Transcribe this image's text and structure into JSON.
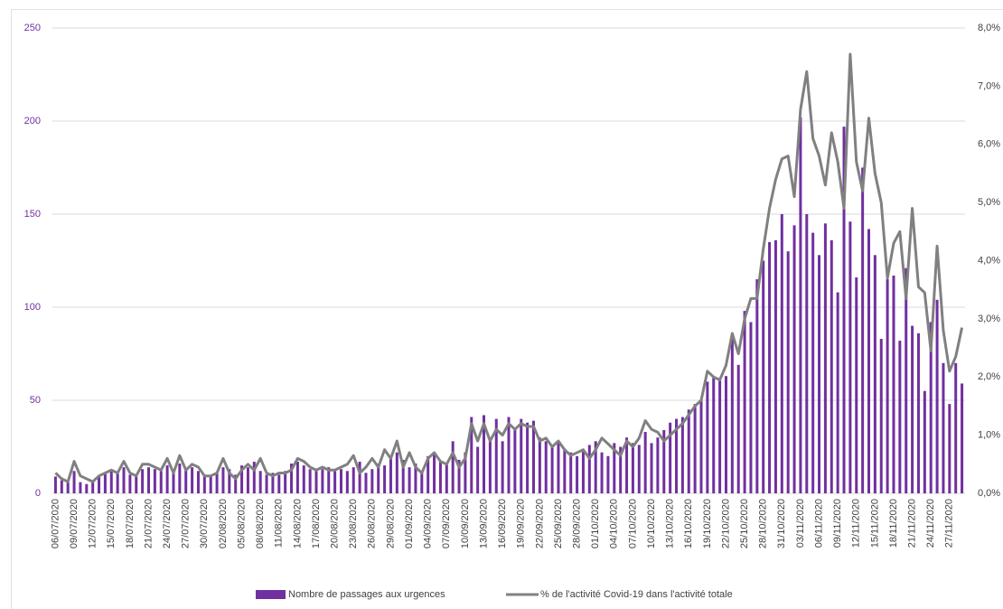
{
  "chart_data": {
    "type": "bar-line",
    "categories": [
      "06/07/2020",
      null,
      null,
      "09/07/2020",
      null,
      null,
      "12/07/2020",
      null,
      null,
      "15/07/2020",
      null,
      null,
      "18/07/2020",
      null,
      null,
      "21/07/2020",
      null,
      null,
      "24/07/2020",
      null,
      null,
      "27/07/2020",
      null,
      null,
      "30/07/2020",
      null,
      null,
      "02/08/2020",
      null,
      null,
      "05/08/2020",
      null,
      null,
      "08/08/2020",
      null,
      null,
      "11/08/2020",
      null,
      null,
      "14/08/2020",
      null,
      null,
      "17/08/2020",
      null,
      null,
      "20/08/2020",
      null,
      null,
      "23/08/2020",
      null,
      null,
      "26/08/2020",
      null,
      null,
      "29/08/2020",
      null,
      null,
      "01/09/2020",
      null,
      null,
      "04/09/2020",
      null,
      null,
      "07/09/2020",
      null,
      null,
      "10/09/2020",
      null,
      null,
      "13/09/2020",
      null,
      null,
      "16/09/2020",
      null,
      null,
      "19/09/2020",
      null,
      null,
      "22/09/2020",
      null,
      null,
      "25/09/2020",
      null,
      null,
      "28/09/2020",
      null,
      null,
      "01/10/2020",
      null,
      null,
      "04/10/2020",
      null,
      null,
      "07/10/2020",
      null,
      null,
      "10/10/2020",
      null,
      null,
      "13/10/2020",
      null,
      null,
      "16/10/2020",
      null,
      null,
      "19/10/2020",
      null,
      null,
      "22/10/2020",
      null,
      null,
      "25/10/2020",
      null,
      null,
      "28/10/2020",
      null,
      null,
      "31/10/2020",
      null,
      null,
      "03/11/2020",
      null,
      null,
      "06/11/2020",
      null,
      null,
      "09/11/2020",
      null,
      null,
      "12/11/2020",
      null,
      null,
      "15/11/2020",
      null,
      null,
      "18/11/2020",
      null,
      null,
      "21/11/2020",
      null,
      null,
      "24/11/2020",
      null,
      null,
      "27/11/2020",
      null,
      null
    ],
    "series": [
      {
        "name": "Nombre de passages aux urgences",
        "type": "bar",
        "color": "#7030a0",
        "values": [
          9,
          7,
          6,
          12,
          6,
          5,
          7,
          9,
          11,
          12,
          11,
          14,
          10,
          9,
          13,
          14,
          13,
          12,
          15,
          11,
          16,
          13,
          14,
          12,
          10,
          9,
          11,
          14,
          13,
          10,
          15,
          14,
          17,
          12,
          10,
          11,
          10,
          12,
          16,
          17,
          15,
          13,
          12,
          13,
          14,
          12,
          13,
          12,
          14,
          17,
          11,
          13,
          16,
          15,
          19,
          22,
          18,
          14,
          16,
          12,
          20,
          22,
          17,
          16,
          28,
          18,
          22,
          41,
          25,
          42,
          30,
          40,
          28,
          41,
          35,
          40,
          38,
          39,
          30,
          28,
          25,
          27,
          24,
          22,
          20,
          23,
          26,
          28,
          22,
          20,
          27,
          25,
          30,
          27,
          26,
          33,
          27,
          30,
          34,
          38,
          40,
          41,
          45,
          48,
          50,
          60,
          62,
          62,
          63,
          85,
          69,
          98,
          92,
          115,
          125,
          135,
          136,
          150,
          130,
          144,
          202,
          150,
          140,
          128,
          145,
          136,
          108,
          197,
          146,
          116,
          175,
          142,
          128,
          83,
          115,
          117,
          82,
          121,
          90,
          86,
          55,
          92,
          104,
          70,
          48,
          70,
          59
        ]
      },
      {
        "name": "% de l'activité Covid-19 dans l'activité totale",
        "type": "line",
        "axis": "y2",
        "color": "#808080",
        "values": [
          0.35,
          0.25,
          0.2,
          0.55,
          0.3,
          0.25,
          0.2,
          0.3,
          0.35,
          0.4,
          0.35,
          0.55,
          0.35,
          0.3,
          0.5,
          0.5,
          0.45,
          0.4,
          0.6,
          0.35,
          0.65,
          0.4,
          0.5,
          0.45,
          0.3,
          0.3,
          0.35,
          0.6,
          0.35,
          0.25,
          0.4,
          0.5,
          0.4,
          0.6,
          0.35,
          0.3,
          0.35,
          0.35,
          0.4,
          0.6,
          0.55,
          0.45,
          0.4,
          0.45,
          0.4,
          0.4,
          0.45,
          0.5,
          0.65,
          0.35,
          0.45,
          0.6,
          0.45,
          0.75,
          0.6,
          0.9,
          0.45,
          0.7,
          0.45,
          0.35,
          0.6,
          0.7,
          0.55,
          0.5,
          0.7,
          0.45,
          0.6,
          1.2,
          0.9,
          1.2,
          0.9,
          1.1,
          1.0,
          1.2,
          1.1,
          1.2,
          1.15,
          1.15,
          0.9,
          0.95,
          0.8,
          0.9,
          0.75,
          0.65,
          0.7,
          0.75,
          0.6,
          0.75,
          0.95,
          0.85,
          0.75,
          0.65,
          0.9,
          0.8,
          0.95,
          1.25,
          1.1,
          1.05,
          0.9,
          1.0,
          1.1,
          1.2,
          1.35,
          1.5,
          1.6,
          2.1,
          2.0,
          1.95,
          2.2,
          2.75,
          2.4,
          3.0,
          3.35,
          3.35,
          4.2,
          4.9,
          5.4,
          5.75,
          5.8,
          5.1,
          6.6,
          7.25,
          6.1,
          5.8,
          5.3,
          6.2,
          5.7,
          4.9,
          7.55,
          5.7,
          5.2,
          6.45,
          5.5,
          5.0,
          3.7,
          4.3,
          4.5,
          3.35,
          4.9,
          3.55,
          3.45,
          2.45,
          4.25,
          2.8,
          2.1,
          2.35,
          2.85
        ]
      }
    ],
    "ylim": [
      0,
      250
    ],
    "yticks": [
      0,
      50,
      100,
      150,
      200,
      250
    ],
    "y2lim": [
      0,
      8
    ],
    "y2ticks": [
      {
        "value": 0,
        "label": "0,0%"
      },
      {
        "value": 1,
        "label": "1,0%"
      },
      {
        "value": 2,
        "label": "2,0%"
      },
      {
        "value": 3,
        "label": "3,0%"
      },
      {
        "value": 4,
        "label": "4,0%"
      },
      {
        "value": 5,
        "label": "5,0%"
      },
      {
        "value": 6,
        "label": "6,0%"
      },
      {
        "value": 7,
        "label": "7,0%"
      },
      {
        "value": 8,
        "label": "8,0%"
      }
    ],
    "grid": true,
    "legend": "bottom"
  }
}
